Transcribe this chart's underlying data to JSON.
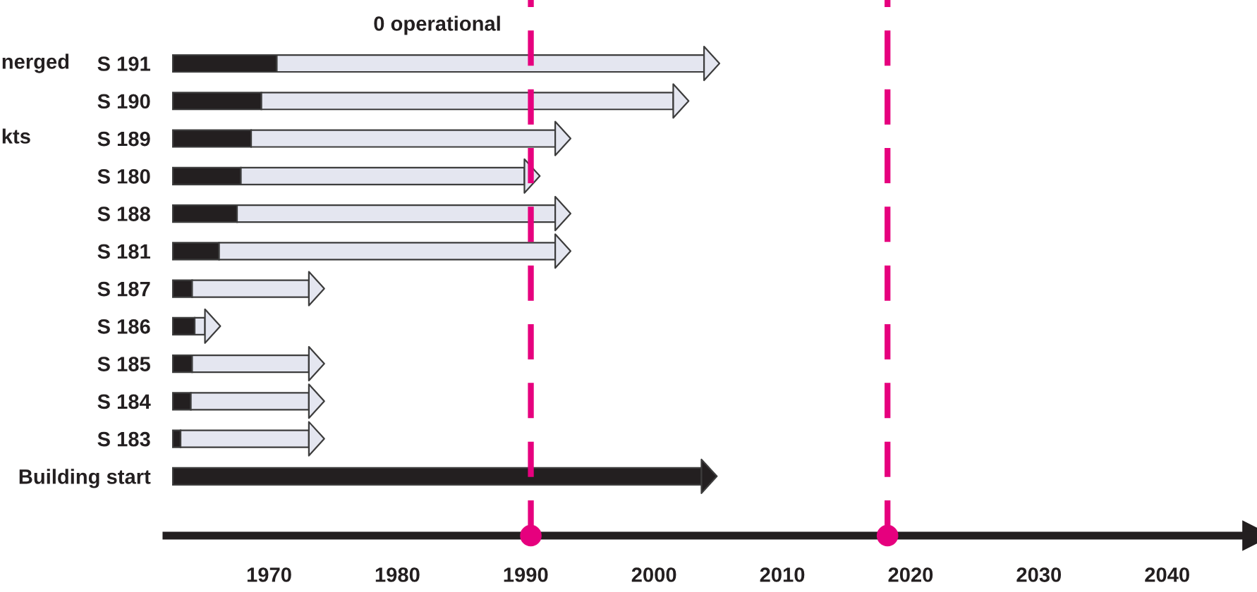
{
  "chart_data": {
    "type": "bar",
    "orientation": "horizontal",
    "categories": [
      "S 191",
      "S 190",
      "S 189",
      "S 180",
      "S 188",
      "S 181",
      "S 187",
      "S 186",
      "S 185",
      "S 184",
      "S 183",
      "Building start"
    ],
    "series": [
      {
        "color": "#231f20",
        "base": [
          1962.5,
          1962.5,
          1962.5,
          1962.5,
          1962.5,
          1962.5,
          1962.5,
          1962.5,
          1962.5,
          1962.5,
          1962.5,
          1962.5
        ],
        "values": [
          8.1,
          6.9,
          6.1,
          5.3,
          5.0,
          3.6,
          1.5,
          1.7,
          1.5,
          1.4,
          0.6,
          41.2
        ]
      },
      {
        "color": "#e4e6f0",
        "base": [
          1970.6,
          1969.4,
          1968.6,
          1967.8,
          1967.5,
          1966.1,
          1964.0,
          1964.2,
          1964.0,
          1963.9,
          1963.1,
          null
        ],
        "values": [
          33.3,
          32.1,
          23.7,
          22.1,
          24.8,
          26.2,
          9.1,
          0.8,
          9.1,
          9.2,
          10.0,
          null
        ]
      }
    ],
    "xlim": [
      1962,
      2047
    ],
    "xticks": [
      1970,
      1980,
      1990,
      2000,
      2010,
      2020,
      2030,
      2040
    ],
    "ref_lines": [
      {
        "axis": "x",
        "value": 1990.4,
        "color": "#e6007e",
        "line_style": "dashed"
      },
      {
        "axis": "x",
        "value": 2018.2,
        "color": "#e6007e",
        "line_style": "dashed"
      }
    ],
    "annotations": [
      "0 operational",
      "nerged",
      "kts"
    ],
    "grid": false,
    "legend": false
  }
}
